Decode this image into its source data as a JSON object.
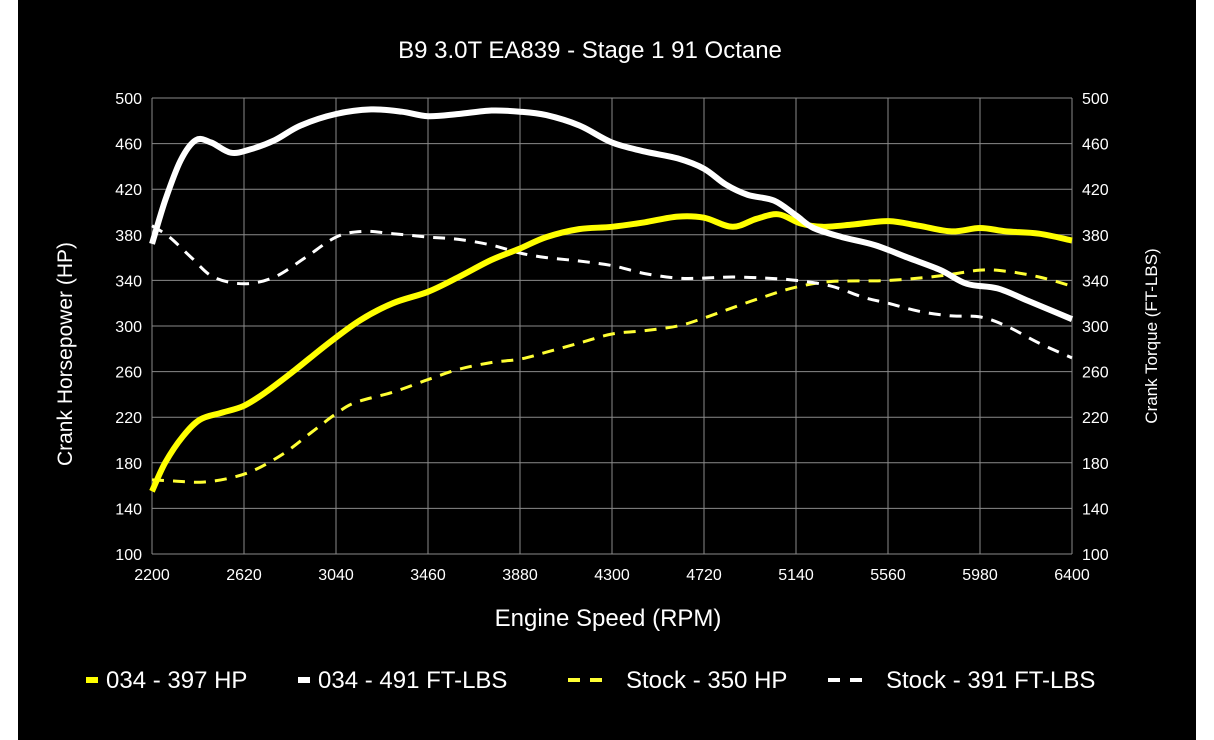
{
  "chart_data": {
    "type": "line",
    "title": "B9 3.0T EA839 - Stage 1 91 Octane",
    "xlabel": "Engine Speed (RPM)",
    "ylabel": "Crank Horsepower (HP)",
    "y2label": "Crank Torque (FT-LBS)",
    "xlim": [
      2200,
      6400
    ],
    "ylim": [
      100,
      500
    ],
    "y2lim": [
      100,
      500
    ],
    "xticks": [
      "2200",
      "2620",
      "3040",
      "3460",
      "3880",
      "4300",
      "4720",
      "5140",
      "5560",
      "5980",
      "6400"
    ],
    "yticks": [
      "100",
      "140",
      "180",
      "220",
      "260",
      "300",
      "340",
      "380",
      "420",
      "460",
      "500"
    ],
    "y2ticks": [
      "100",
      "140",
      "180",
      "220",
      "260",
      "300",
      "340",
      "380",
      "420",
      "460",
      "500"
    ],
    "grid": true,
    "legend_position": "bottom",
    "series": [
      {
        "name": "034 - 397 HP",
        "color": "#ffff00",
        "style": "solid",
        "x": [
          2200,
          2260,
          2340,
          2420,
          2520,
          2620,
          2720,
          2850,
          3000,
          3150,
          3300,
          3460,
          3600,
          3750,
          3880,
          4000,
          4150,
          4300,
          4450,
          4600,
          4720,
          4850,
          4960,
          5060,
          5160,
          5260,
          5400,
          5560,
          5700,
          5850,
          5980,
          6100,
          6250,
          6400
        ],
        "y": [
          155,
          180,
          203,
          218,
          224,
          230,
          242,
          261,
          284,
          305,
          320,
          330,
          343,
          358,
          368,
          378,
          385,
          387,
          391,
          396,
          395,
          387,
          394,
          398,
          390,
          387,
          389,
          392,
          388,
          383,
          386,
          383,
          381,
          375
        ]
      },
      {
        "name": "034 - 491 FT-LBS",
        "color": "#ffffff",
        "style": "solid",
        "x": [
          2200,
          2260,
          2330,
          2400,
          2470,
          2560,
          2650,
          2760,
          2880,
          3040,
          3200,
          3340,
          3460,
          3600,
          3750,
          3880,
          4000,
          4150,
          4300,
          4450,
          4600,
          4720,
          4820,
          4920,
          5040,
          5140,
          5220,
          5350,
          5500,
          5650,
          5800,
          5920,
          6060,
          6200,
          6300,
          6400
        ],
        "y": [
          372,
          410,
          445,
          463,
          461,
          452,
          455,
          463,
          476,
          486,
          490,
          488,
          484,
          486,
          489,
          488,
          485,
          476,
          461,
          453,
          447,
          438,
          424,
          415,
          410,
          397,
          386,
          378,
          371,
          360,
          349,
          337,
          333,
          322,
          314,
          306
        ]
      },
      {
        "name": "Stock - 350 HP",
        "color": "#ffff33",
        "style": "dashed",
        "x": [
          2200,
          2300,
          2420,
          2540,
          2660,
          2800,
          2930,
          3040,
          3130,
          3300,
          3460,
          3600,
          3750,
          3880,
          4000,
          4150,
          4300,
          4450,
          4600,
          4720,
          4850,
          5000,
          5140,
          5300,
          5560,
          5800,
          5980,
          6100,
          6250,
          6400
        ],
        "y": [
          165,
          164,
          163,
          166,
          173,
          188,
          207,
          223,
          233,
          242,
          253,
          262,
          268,
          271,
          277,
          285,
          293,
          296,
          300,
          307,
          316,
          326,
          334,
          339,
          340,
          344,
          349,
          348,
          343,
          335
        ]
      },
      {
        "name": "Stock - 391 FT-LBS",
        "color": "#ffffff",
        "style": "dashed",
        "x": [
          2200,
          2280,
          2380,
          2480,
          2620,
          2760,
          2900,
          3040,
          3160,
          3300,
          3460,
          3600,
          3750,
          3880,
          4000,
          4150,
          4300,
          4450,
          4600,
          4720,
          4850,
          5000,
          5140,
          5300,
          5450,
          5560,
          5700,
          5840,
          5980,
          6100,
          6250,
          6400
        ],
        "y": [
          388,
          378,
          360,
          343,
          337,
          343,
          360,
          378,
          383,
          381,
          378,
          376,
          371,
          364,
          360,
          357,
          353,
          346,
          342,
          342,
          343,
          342,
          340,
          335,
          325,
          320,
          313,
          309,
          308,
          300,
          285,
          272
        ]
      }
    ]
  }
}
